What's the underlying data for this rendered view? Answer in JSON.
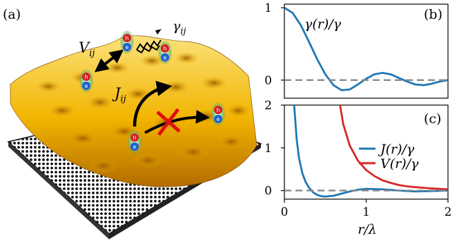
{
  "panel_labels": {
    "a": "(a)",
    "b": "(b)",
    "c": "(c)"
  },
  "illustration": {
    "labels": {
      "gamma_ij": "γij",
      "V_ij": "Vij",
      "J_ij": "Jij"
    },
    "exciton_glyphs": {
      "hole": "h",
      "electron": "e"
    },
    "colors": {
      "surface": "#f2b400",
      "hole": "#d62020",
      "electron": "#1f5fd0",
      "cross": "#e01010",
      "substrate": "#111111"
    }
  },
  "chart_data": [
    {
      "type": "line",
      "panel": "(b)",
      "title": "γ(r)/γ",
      "x_ticks": [],
      "y_ticks": [
        "0",
        "1"
      ],
      "xlim": [
        0,
        2
      ],
      "ylim": [
        -0.25,
        1.05
      ],
      "series": [
        {
          "color": "#1f77b4",
          "x": [
            0,
            0.1,
            0.2,
            0.3,
            0.4,
            0.5,
            0.6,
            0.7,
            0.8,
            0.9,
            1.0,
            1.1,
            1.2,
            1.3,
            1.4,
            1.5,
            1.6,
            1.7,
            1.8,
            1.9,
            2.0
          ],
          "y": [
            1.0,
            0.93,
            0.76,
            0.53,
            0.29,
            0.08,
            -0.07,
            -0.14,
            -0.13,
            -0.06,
            0.02,
            0.08,
            0.1,
            0.08,
            0.03,
            -0.02,
            -0.06,
            -0.07,
            -0.05,
            -0.02,
            0.0
          ]
        },
        {
          "style": "dashed",
          "color": "#888888",
          "x": [
            0,
            2
          ],
          "y": [
            0,
            0
          ]
        }
      ]
    },
    {
      "type": "line",
      "panel": "(c)",
      "xlabel": "r/λ",
      "x_ticks": [
        "0",
        "1",
        "2"
      ],
      "y_ticks": [
        "0",
        "1",
        "2"
      ],
      "xlim": [
        0,
        2
      ],
      "ylim": [
        -0.2,
        2.0
      ],
      "legend_position": "right",
      "series": [
        {
          "name": "J(r)/γ",
          "color": "#1f77b4",
          "x": [
            0.12,
            0.15,
            0.18,
            0.22,
            0.26,
            0.3,
            0.35,
            0.4,
            0.45,
            0.5,
            0.6,
            0.7,
            0.8,
            0.9,
            1.0,
            1.2,
            1.4,
            1.6,
            1.8,
            2.0
          ],
          "y": [
            2.0,
            1.2,
            0.75,
            0.4,
            0.2,
            0.07,
            -0.04,
            -0.1,
            -0.13,
            -0.14,
            -0.12,
            -0.07,
            -0.02,
            0.02,
            0.04,
            0.03,
            0.0,
            -0.02,
            -0.01,
            0.0
          ]
        },
        {
          "name": "V(r)/γ",
          "color": "#d62728",
          "x": [
            0.68,
            0.72,
            0.8,
            0.9,
            1.0,
            1.1,
            1.2,
            1.3,
            1.4,
            1.5,
            1.6,
            1.8,
            2.0
          ],
          "y": [
            2.0,
            1.55,
            1.05,
            0.7,
            0.48,
            0.34,
            0.24,
            0.18,
            0.13,
            0.1,
            0.08,
            0.05,
            0.03
          ]
        },
        {
          "style": "dashed",
          "color": "#888888",
          "x": [
            0,
            2
          ],
          "y": [
            0,
            0
          ]
        }
      ]
    }
  ]
}
